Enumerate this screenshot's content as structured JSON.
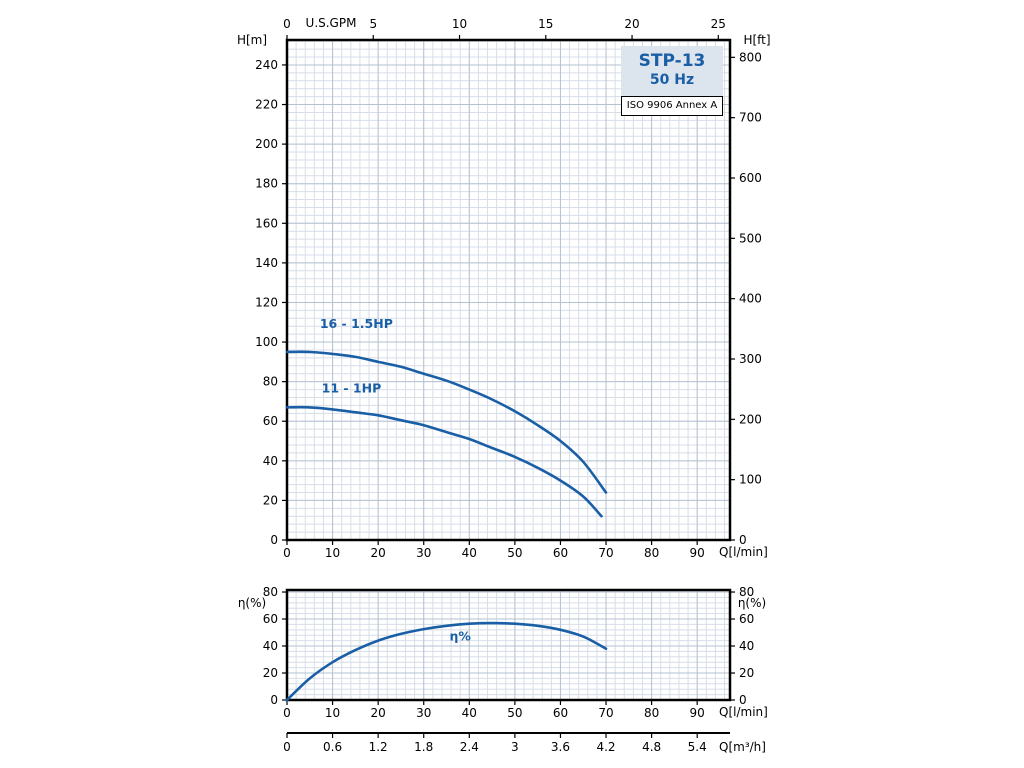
{
  "colors": {
    "curve": "#1a5fa6",
    "blue_label": "#1a5fa6",
    "grid_minor": "#d7dee8",
    "grid_major": "#b6c2d2",
    "frame": "#000000",
    "title_box_bg": "#dce5ee"
  },
  "chart_data": [
    {
      "type": "line",
      "id": "head_chart",
      "title": "STP-13",
      "subtitle": "50 Hz",
      "note": "ISO 9906 Annex A",
      "axes": {
        "bottom": {
          "label": "Q[l/min]",
          "range": [
            0,
            97.2
          ],
          "ticks": [
            0,
            10,
            20,
            30,
            40,
            50,
            60,
            70,
            80,
            90
          ]
        },
        "top": {
          "label": "U.S.GPM",
          "unit_in_lmin": 3.7854,
          "ticks": [
            0,
            5,
            10,
            15,
            20,
            25
          ]
        },
        "left": {
          "label": "H[m]",
          "range": [
            0,
            252.6
          ],
          "ticks": [
            0,
            20,
            40,
            60,
            80,
            100,
            120,
            140,
            160,
            180,
            200,
            220,
            240
          ]
        },
        "right": {
          "label": "H[ft]",
          "unit_in_m": 0.3048,
          "ticks": [
            0,
            100,
            200,
            300,
            400,
            500,
            600,
            700,
            800
          ]
        }
      },
      "series": [
        {
          "name": "16 - 1.5HP",
          "points": [
            [
              0,
              95
            ],
            [
              5,
              95
            ],
            [
              10,
              94
            ],
            [
              15,
              92.5
            ],
            [
              20,
              90
            ],
            [
              25,
              87.5
            ],
            [
              30,
              84
            ],
            [
              35,
              80.5
            ],
            [
              40,
              76
            ],
            [
              45,
              71
            ],
            [
              50,
              65
            ],
            [
              55,
              58
            ],
            [
              60,
              50
            ],
            [
              65,
              39.5
            ],
            [
              70,
              24
            ]
          ]
        },
        {
          "name": "11 - 1HP",
          "points": [
            [
              0,
              67
            ],
            [
              5,
              67
            ],
            [
              10,
              66
            ],
            [
              15,
              64.5
            ],
            [
              20,
              63
            ],
            [
              25,
              60.5
            ],
            [
              30,
              58
            ],
            [
              35,
              54.5
            ],
            [
              40,
              51
            ],
            [
              45,
              46.5
            ],
            [
              50,
              42
            ],
            [
              55,
              36.5
            ],
            [
              60,
              30
            ],
            [
              65,
              22
            ],
            [
              69,
              12
            ]
          ]
        }
      ]
    },
    {
      "type": "line",
      "id": "eff_chart",
      "axes": {
        "bottom": {
          "label": "Q[l/min]",
          "range": [
            0,
            97.2
          ],
          "ticks": [
            0,
            10,
            20,
            30,
            40,
            50,
            60,
            70,
            80,
            90
          ]
        },
        "bottom2": {
          "label": "Q[m³/h]",
          "unit_in_lmin": 16.6667,
          "ticks": [
            "0",
            "0.6",
            "1.2",
            "1.8",
            "2.4",
            "3",
            "3.6",
            "4.2",
            "4.8",
            "5.4"
          ]
        },
        "left": {
          "label": "η(%)",
          "range": [
            0,
            81.5
          ],
          "ticks": [
            0,
            20,
            40,
            60,
            80
          ]
        },
        "right": {
          "label": "η(%)",
          "range": [
            0,
            81.5
          ],
          "ticks": [
            0,
            20,
            40,
            60,
            80
          ]
        }
      },
      "series": [
        {
          "name": "η%",
          "points": [
            [
              0,
              0
            ],
            [
              5,
              16
            ],
            [
              10,
              28
            ],
            [
              15,
              37
            ],
            [
              20,
              44
            ],
            [
              25,
              49
            ],
            [
              30,
              52.5
            ],
            [
              35,
              55
            ],
            [
              40,
              56.5
            ],
            [
              45,
              57
            ],
            [
              50,
              56.5
            ],
            [
              55,
              55
            ],
            [
              60,
              52
            ],
            [
              65,
              47
            ],
            [
              70,
              38
            ]
          ]
        }
      ]
    }
  ]
}
